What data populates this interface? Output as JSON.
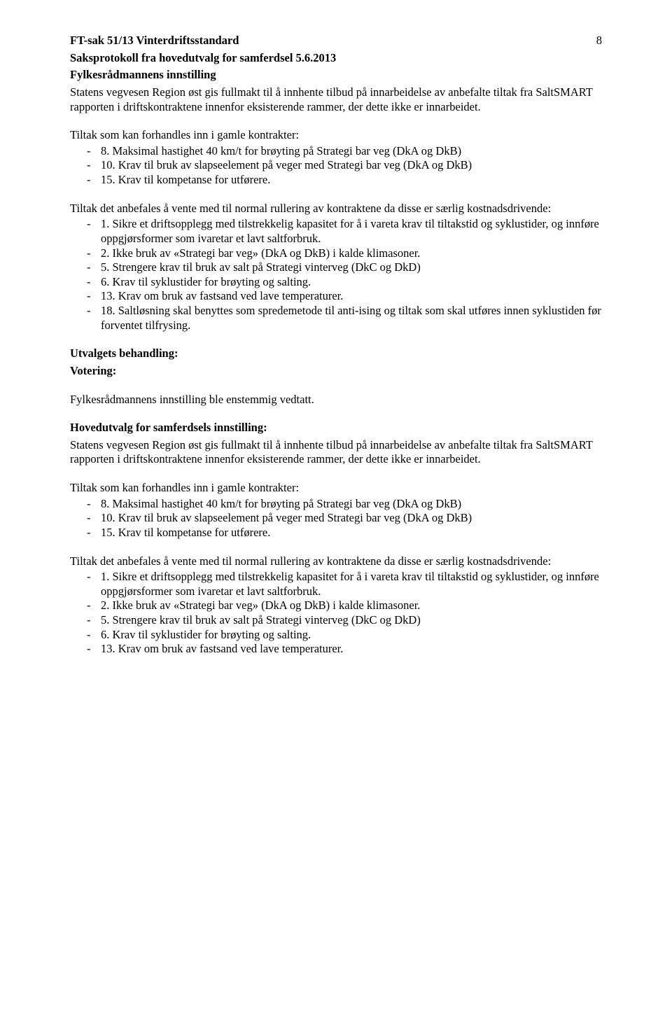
{
  "pageNumber": "8",
  "caseTitle": "FT-sak 51/13 Vinterdriftsstandard",
  "subTitle": "Saksprotokoll fra hovedutvalg for samferdsel 5.6.2013",
  "fylkesHeading": "Fylkesrådmannens innstilling",
  "statensPara": "Statens vegvesen Region øst gis fullmakt til å innhente tilbud på innarbeidelse av anbefalte tiltak fra SaltSMART rapporten i driftskontraktene innenfor eksisterende rammer, der dette ikke er innarbeidet.",
  "tiltakIntro": "Tiltak som kan forhandles inn i gamle kontrakter:",
  "tiltakList": [
    "8. Maksimal hastighet 40 km/t for brøyting på Strategi bar veg (DkA og DkB)",
    "10. Krav til bruk av slapseelement på veger med Strategi bar veg (DkA og DkB)",
    "15. Krav til kompetanse for utførere."
  ],
  "anbefalesIntro": "Tiltak det anbefales å vente med til normal rullering av kontraktene da disse er særlig kostnadsdrivende:",
  "anbefalesList": [
    "1. Sikre et driftsopplegg med tilstrekkelig kapasitet for å i vareta krav til tiltakstid og syklustider, og innføre oppgjørsformer som ivaretar et lavt saltforbruk.",
    "2. Ikke bruk av «Strategi bar veg» (DkA og DkB) i kalde klimasoner.",
    "5. Strengere krav til bruk av salt på Strategi vinterveg (DkC og DkD)",
    "6. Krav til syklustider for brøyting og salting.",
    "13. Krav om bruk av fastsand ved lave temperaturer.",
    "18. Saltløsning skal benyttes som spredemetode til anti-ising og tiltak som skal utføres innen syklustiden før forventet tilfrysing."
  ],
  "utvalgetsHeading": "Utvalgets behandling:",
  "voteringHeading": "Votering:",
  "voteringText": "Fylkesrådmannens innstilling ble enstemmig vedtatt.",
  "hovedutvalgHeading": "Hovedutvalg for samferdsels innstilling:",
  "statensPara2": "Statens vegvesen Region øst gis fullmakt til å innhente tilbud på innarbeidelse av anbefalte tiltak fra SaltSMART rapporten i driftskontraktene innenfor eksisterende rammer, der dette ikke er innarbeidet.",
  "tiltakIntro2": "Tiltak som kan forhandles inn i gamle kontrakter:",
  "tiltakList2": [
    "8. Maksimal hastighet 40 km/t for brøyting på Strategi bar veg (DkA og DkB)",
    "10. Krav til bruk av slapseelement på veger med Strategi bar veg (DkA og DkB)",
    "15. Krav til kompetanse for utførere."
  ],
  "anbefalesIntro2": "Tiltak det anbefales å vente med til normal rullering av kontraktene da disse er særlig kostnadsdrivende:",
  "anbefalesList2": [
    "1. Sikre et driftsopplegg med tilstrekkelig kapasitet for å i vareta krav til tiltakstid og syklustider, og innføre oppgjørsformer som ivaretar et lavt saltforbruk.",
    "2. Ikke bruk av «Strategi bar veg» (DkA og DkB) i kalde klimasoner.",
    "5. Strengere krav til bruk av salt på Strategi vinterveg (DkC og DkD)",
    "6. Krav til syklustider for brøyting og salting.",
    "13. Krav om bruk av fastsand ved lave temperaturer."
  ]
}
